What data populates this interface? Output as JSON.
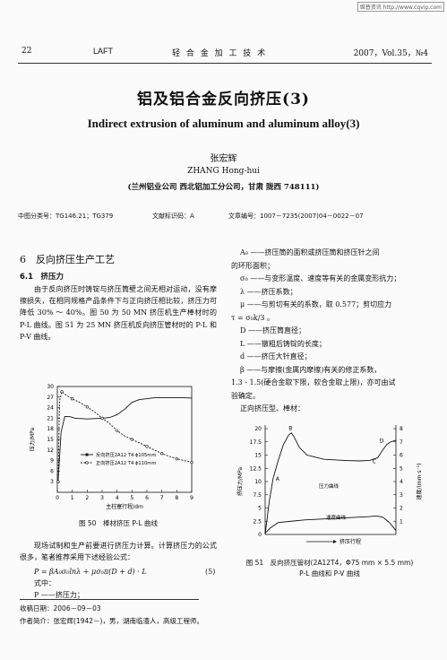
{
  "watermark": "维普资讯 http://www.cqvip.com",
  "header": {
    "page": "22",
    "journal": "LAFT",
    "journal_zh": "轻 合 金 加 工 技 术",
    "issue": "2007，Vol.35，№4"
  },
  "title_zh": "铝及铝合金反向挤压(3)",
  "title_en": "Indirect extrusion of aluminum and aluminum alloy(3)",
  "author_zh": "张宏辉",
  "author_en": "ZHANG Hong-hui",
  "affiliation": "(兰州铝业公司 西北铝加工分公司，甘肃 陇西 748111)",
  "meta": {
    "clc": "中图分类号：TG146.21；TG379",
    "doc": "文献标识码：A",
    "article": "文章编号：1007－7235(2007)04－0022－07"
  },
  "left": {
    "section": "6　反向挤压生产工艺",
    "subsection": "6.1　挤压力",
    "para1": "由于反向挤压时铸锭与挤压筒壁之间无相对运动，没有摩擦损失，在相同规格产品条件下与正向挤压相比较，挤压力可降低 30% ～ 40%。图 50 为 50 MN 挤压机生产棒材时的 P-L 曲线。图 51 为 25 MN 挤压机反向挤压管材时的 P-L 和 P-V 曲线。",
    "para2": "现场试制和生产前要进行挤压力计算。计算挤压力的公式很多，笔者推荐采用下述经验公式：",
    "formula": "P = βA₀σ₀lnλ + μσ₀π(D + d) · L",
    "formula_no": "(5)",
    "where": "式中：",
    "def_P": "P ——挤压力；"
  },
  "right": {
    "lines": [
      "A₀ ——挤压筒的面积或挤压筒和挤压针之间",
      "的环形面积；",
      "σ₀ ——与变形温度、速度等有关的金属变形抗力；",
      "λ ——挤压系数；",
      "μ ——与剪切有关的系数，取 0.577；剪切应力",
      "τ = σ₀k/3 。",
      "D ——挤压筒直径；",
      "L ——镦粗后铸锭的长度；",
      "d ——挤压大针直径；",
      "β ——与摩擦(金属内摩擦)有关的修正系数，",
      "1.3 - 1.5(硬合金取下限，软合金取上限)，亦可由试",
      "验确定。",
      "正向挤压型、棒材："
    ]
  },
  "fig50": {
    "caption": "图 50　棒材挤压 P-L 曲线",
    "ylabel": "压力/MPa",
    "xlabel": "主柱塞行程/dm",
    "legend": [
      "反向挤压2A12 T4 ϕ105mm",
      "正向挤压2A12 T4 ϕ110mm"
    ]
  },
  "fig51": {
    "caption_line1": "图 51　反向挤压管材(2A12T4，Φ75 mm × 5.5 mm)",
    "caption_line2": "P-L 曲线和 P-V 曲线",
    "ylabel_left": "挤压力/MPa",
    "ylabel_right": "速度/(mm·s⁻¹)",
    "xlabel": "挤压行程",
    "label_pressure": "压力曲线",
    "label_speed": "速度曲线",
    "point_labels": [
      "A",
      "B",
      "C",
      "D"
    ]
  },
  "footer": {
    "received": "收稿日期：2006－09－03",
    "bio": "作者简介：张宏辉(1942－)，男，湖南临澧人，高级工程师。"
  },
  "chart_data": [
    {
      "type": "line",
      "title": "",
      "xlabel": "主柱塞行程/dm",
      "ylabel": "压力/MPa",
      "xlim": [
        0,
        9
      ],
      "ylim": [
        0,
        30
      ],
      "x_ticks": [
        0,
        1,
        2,
        3,
        4,
        5,
        6,
        7,
        8,
        9
      ],
      "y_ticks": [
        3,
        6,
        9,
        12,
        15,
        18,
        21,
        24,
        27,
        30
      ],
      "series": [
        {
          "name": "反向挤压2A12 T4 ϕ105mm",
          "x": [
            0.05,
            0.25,
            0.5,
            0.8,
            1.2,
            2.0,
            3.0,
            3.5,
            4.0,
            4.5,
            5.0,
            5.5,
            5.7,
            5.9,
            6.5,
            7.5,
            8.5,
            9.0
          ],
          "y": [
            3,
            17,
            21.5,
            21.5,
            21,
            20.8,
            21,
            21.2,
            22,
            23.5,
            25.5,
            26.3,
            26.4,
            26.5,
            26.8,
            26.8,
            26.8,
            26.7
          ]
        },
        {
          "name": "正向挤压2A12 T4 ϕ110mm",
          "x": [
            0.05,
            0.15,
            0.3,
            0.6,
            1.0,
            1.5,
            2.0,
            2.5,
            3.0,
            3.5,
            4.0,
            4.5,
            5.0,
            5.5,
            6.0,
            6.5,
            7.0,
            7.5,
            8.0,
            8.5,
            9.0
          ],
          "y": [
            3,
            26,
            28.5,
            27.5,
            26.5,
            25.5,
            24.2,
            22.8,
            21.0,
            19.5,
            17.5,
            16,
            15,
            14,
            13,
            12,
            11,
            10.2,
            9.5,
            9,
            8.5
          ]
        }
      ]
    },
    {
      "type": "line",
      "title": "",
      "xlabel": "挤压行程",
      "ylabel": "挤压力/MPa",
      "ylabel_right": "速度/(mm·s⁻¹)",
      "ylim": [
        0,
        20
      ],
      "ylim_right": [
        0,
        8
      ],
      "y_ticks": [
        2.5,
        5,
        7.5,
        10,
        12.5,
        15,
        17.5,
        20
      ],
      "y_ticks_right": [
        1,
        2,
        3,
        4,
        5,
        6,
        7,
        8
      ],
      "series": [
        {
          "name": "压力曲线",
          "x": [
            0,
            0.01,
            0.03,
            0.06,
            0.1,
            0.14,
            0.18,
            0.2,
            0.22,
            0.26,
            0.32,
            0.45,
            0.6,
            0.72,
            0.8,
            0.86,
            0.9,
            0.93,
            0.96,
            1.0
          ],
          "y": [
            0,
            2,
            6,
            10.5,
            14,
            17,
            18.8,
            19.2,
            18.5,
            16.5,
            15,
            14.2,
            14,
            13.9,
            14,
            14.5,
            16,
            17,
            17.5,
            17.8
          ]
        },
        {
          "name": "速度曲线",
          "x": [
            0,
            0.02,
            0.04,
            0.1,
            0.2,
            0.3,
            0.4,
            0.5,
            0.6,
            0.7,
            0.8,
            0.85,
            0.9,
            0.95,
            1.0
          ],
          "y": [
            0.1,
            0.3,
            0.5,
            0.9,
            1.0,
            1.1,
            1.15,
            1.2,
            1.25,
            1.3,
            1.35,
            1.4,
            1.3,
            0.9,
            0.3
          ]
        }
      ]
    }
  ]
}
